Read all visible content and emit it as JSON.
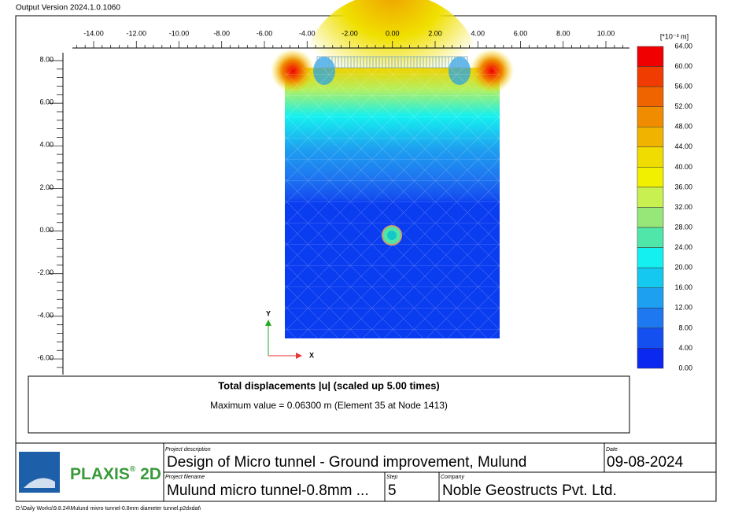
{
  "header": {
    "version": "Output Version 2024.1.0.1060"
  },
  "x_axis": {
    "ticks": [
      "-14.00",
      "-12.00",
      "-10.00",
      "-8.00",
      "-6.00",
      "-4.00",
      "-2.00",
      "0.00",
      "2.00",
      "4.00",
      "6.00",
      "8.00",
      "10.00"
    ]
  },
  "y_axis": {
    "ticks": [
      "8.00",
      "6.00",
      "4.00",
      "2.00",
      "0.00",
      "-2.00",
      "-4.00",
      "-6.00"
    ]
  },
  "axes_icon": {
    "y": "Y",
    "x": "X"
  },
  "legend": {
    "unit": "[*10⁻³ m]",
    "labels": [
      "64.00",
      "60.00",
      "56.00",
      "52.00",
      "48.00",
      "44.00",
      "40.00",
      "36.00",
      "32.00",
      "28.00",
      "24.00",
      "20.00",
      "16.00",
      "12.00",
      "8.00",
      "4.00",
      "0.00"
    ]
  },
  "caption": {
    "title": "Total displacements |u| (scaled up 5.00 times)",
    "subtitle": "Maximum value = 0.06300 m (Element 35 at Node 1413)"
  },
  "title_block": {
    "logo": "PLAXIS",
    "logo_sup": "®",
    "logo_suffix": " 2D",
    "project_description_label": "Project description",
    "project_description": "Design of Micro tunnel - Ground improvement, Mulund",
    "date_label": "Date",
    "date": "09-08-2024",
    "project_filename_label": "Project filename",
    "project_filename": "Mulund micro tunnel-0.8mm ...",
    "step_label": "Step",
    "step": "5",
    "company_label": "Company",
    "company": "Noble Geostructs Pvt. Ltd."
  },
  "footer": {
    "path": "D:\\Daily Works\\9.8.24\\Mulund mivro tunnel-0.8mm diameter tunnel.p2dxdat\\"
  }
}
